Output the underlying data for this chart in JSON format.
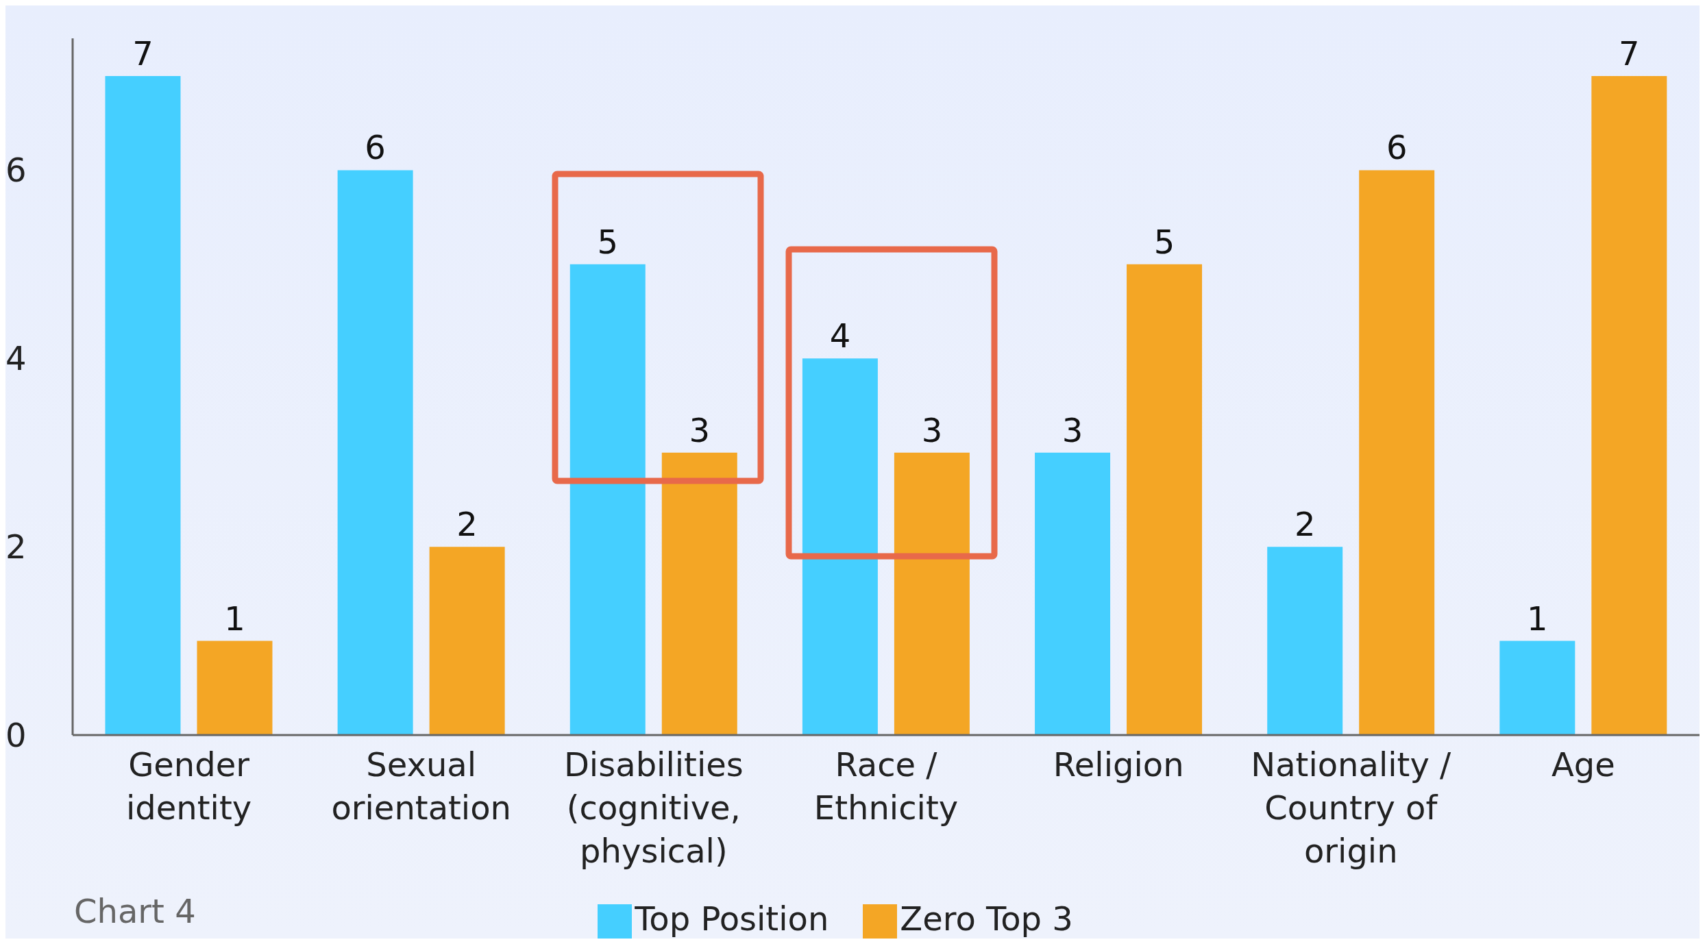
{
  "chart_data": {
    "type": "bar",
    "categories": [
      "Gender identity",
      "Sexual orientation",
      "Disabilities (cognitive, physical)",
      "Race / Ethnicity",
      "Religion",
      "Nationality / Country of origin",
      "Age"
    ],
    "series": [
      {
        "name": "Top Position",
        "color": "#45cfff",
        "values": [
          7,
          6,
          5,
          4,
          3,
          2,
          1
        ]
      },
      {
        "name": "Zero Top 3",
        "color": "#f4a625",
        "values": [
          1,
          2,
          3,
          3,
          5,
          6,
          7
        ]
      }
    ],
    "ylim": [
      0,
      7.4
    ],
    "yticks": [
      0,
      2,
      4,
      6
    ],
    "data_labels": true,
    "grid": false,
    "legend": "bottom",
    "annotations": [
      "Chart 4"
    ]
  }
}
